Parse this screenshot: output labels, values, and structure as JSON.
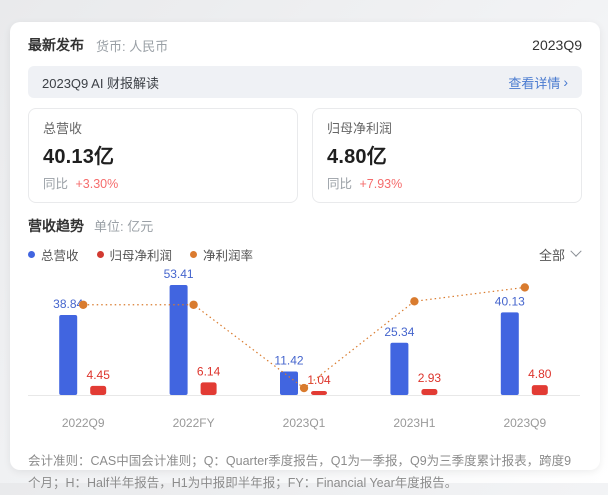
{
  "header": {
    "title": "最新发布",
    "currency_label": "货币: 人民币",
    "period": "2023Q9"
  },
  "banner": {
    "title": "2023Q9 AI 财报解读",
    "link_label": "查看详情",
    "link_chevron": "›"
  },
  "summary_cards": [
    {
      "label": "总营收",
      "value": "40.13亿",
      "yoy_label": "同比",
      "yoy_value": "+3.30%"
    },
    {
      "label": "归母净利润",
      "value": "4.80亿",
      "yoy_label": "同比",
      "yoy_value": "+7.93%"
    }
  ],
  "trend_section": {
    "title": "营收趋势",
    "unit_label": "单位: 亿元",
    "filter_label": "全部",
    "legend": [
      {
        "label": "总营收",
        "color": "#4165e0"
      },
      {
        "label": "归母净利润",
        "color": "#d23a31"
      },
      {
        "label": "净利润率",
        "color": "#db7b2f"
      }
    ]
  },
  "chart_data": {
    "type": "bar",
    "categories": [
      "2022Q9",
      "2022FY",
      "2023Q1",
      "2023H1",
      "2023Q9"
    ],
    "series": [
      {
        "name": "总营收",
        "type": "bar",
        "color": "#4165e0",
        "label_color": "#4565cd",
        "values": [
          38.84,
          53.41,
          11.42,
          25.34,
          40.13
        ]
      },
      {
        "name": "归母净利润",
        "type": "bar",
        "color": "#e23b34",
        "label_color": "#dd342c",
        "values": [
          4.45,
          6.14,
          1.04,
          2.93,
          4.8
        ]
      },
      {
        "name": "净利润率",
        "type": "line",
        "color": "#d97b2e",
        "values_pct": [
          11.5,
          11.5,
          9.1,
          11.6,
          12.0
        ]
      }
    ],
    "title": "营收趋势",
    "unit": "亿元",
    "xlabel": "",
    "ylabel": "亿元",
    "left_axis_range": [
      0,
      57
    ],
    "right_axis_range_pct": [
      8.9,
      12.3
    ],
    "grid": false,
    "legend_position": "top-left",
    "line_style": "dotted",
    "axis_label_color": "#999999",
    "baseline_color": "#e8e8e8"
  },
  "footnote": "会计准则：CAS中国会计准则；Q：Quarter季度报告，Q1为一季报，Q9为三季度累计报表，跨度9个月；H：Half半年报告，H1为中报即半年报；FY：Financial Year年度报告。"
}
